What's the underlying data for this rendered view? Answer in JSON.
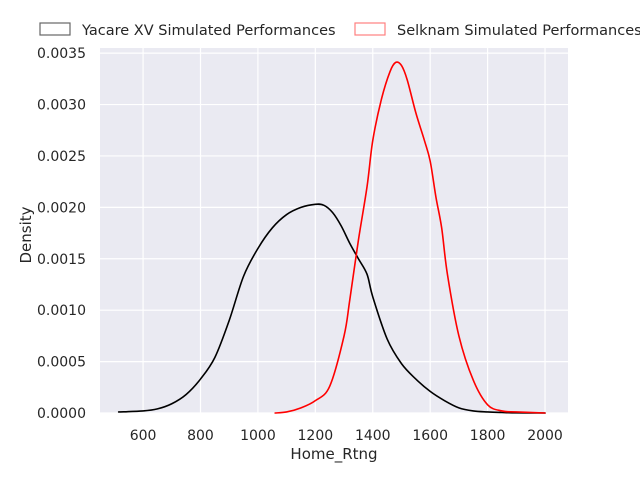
{
  "chart_data": {
    "type": "line",
    "title": "",
    "xlabel": "Home_Rtng",
    "ylabel": "Density",
    "xlim": [
      450,
      2080
    ],
    "ylim": [
      0,
      0.00355
    ],
    "x_ticks": [
      600,
      800,
      1000,
      1200,
      1400,
      1600,
      1800,
      2000
    ],
    "y_ticks": [
      0.0,
      0.0005,
      0.001,
      0.0015,
      0.002,
      0.0025,
      0.003,
      0.0035
    ],
    "x_tick_labels": [
      "600",
      "800",
      "1000",
      "1200",
      "1400",
      "1600",
      "1800",
      "2000"
    ],
    "y_tick_labels": [
      "0.0000",
      "0.0005",
      "0.0010",
      "0.0015",
      "0.0020",
      "0.0025",
      "0.0030",
      "0.0035"
    ],
    "grid": true,
    "legend_position": "top",
    "series": [
      {
        "name": "Yacare XV Simulated Performances",
        "color": "#000000",
        "x": [
          515,
          600,
          650,
          700,
          750,
          800,
          850,
          900,
          950,
          1000,
          1050,
          1100,
          1150,
          1200,
          1230,
          1260,
          1290,
          1320,
          1350,
          1380,
          1400,
          1450,
          1500,
          1550,
          1600,
          1650,
          1700,
          1750,
          1800,
          1850,
          1900,
          2000
        ],
        "y": [
          1e-05,
          2e-05,
          4e-05,
          9e-05,
          0.00018,
          0.00033,
          0.00054,
          0.0009,
          0.00133,
          0.0016,
          0.0018,
          0.00193,
          0.002,
          0.00203,
          0.00202,
          0.00195,
          0.00182,
          0.00165,
          0.0015,
          0.00135,
          0.00113,
          0.00072,
          0.00048,
          0.00033,
          0.00021,
          0.00012,
          5e-05,
          2e-05,
          1e-05,
          5e-06,
          2e-06,
          0.0
        ]
      },
      {
        "name": "Selknam Simulated Performances",
        "color": "#ff0000",
        "x": [
          1060,
          1100,
          1150,
          1200,
          1250,
          1300,
          1320,
          1350,
          1380,
          1400,
          1430,
          1460,
          1480,
          1500,
          1520,
          1550,
          1580,
          1600,
          1620,
          1640,
          1660,
          1700,
          1750,
          1800,
          1850,
          1900,
          2000
        ],
        "y": [
          0.0,
          1e-05,
          5e-05,
          0.00012,
          0.00026,
          0.00075,
          0.0011,
          0.00168,
          0.0022,
          0.00265,
          0.00305,
          0.00332,
          0.00341,
          0.00338,
          0.00324,
          0.00292,
          0.00265,
          0.00245,
          0.0021,
          0.0018,
          0.00135,
          0.00075,
          0.00032,
          8e-05,
          2e-05,
          1e-05,
          0.0
        ]
      }
    ]
  }
}
